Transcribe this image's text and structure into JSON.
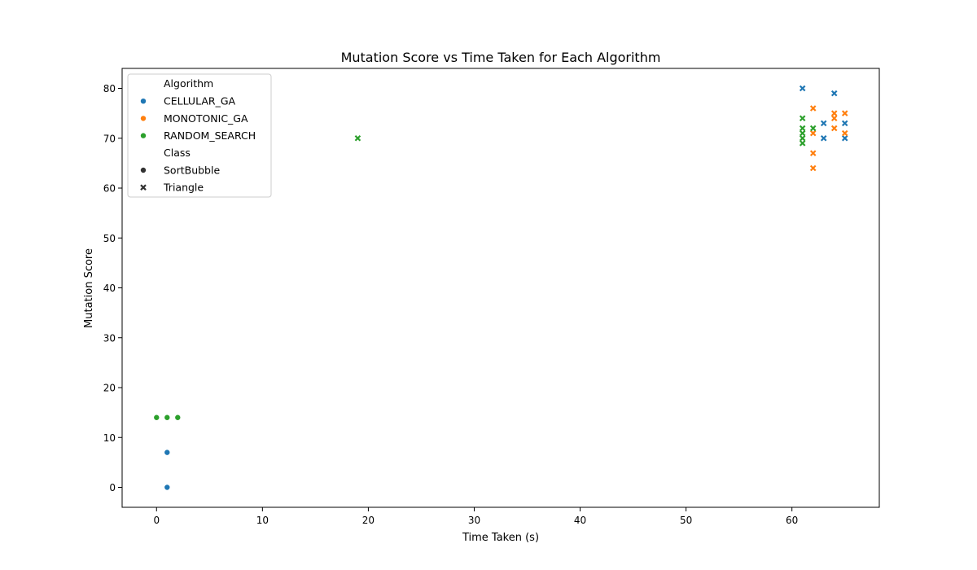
{
  "chart_data": {
    "type": "scatter",
    "title": "Mutation Score vs Time Taken for Each Algorithm",
    "xlabel": "Time Taken (s)",
    "ylabel": "Mutation Score",
    "xlim": [
      -3.25,
      68.25
    ],
    "ylim": [
      -4,
      84
    ],
    "xticks": [
      0,
      10,
      20,
      30,
      40,
      50,
      60
    ],
    "yticks": [
      0,
      10,
      20,
      30,
      40,
      50,
      60,
      70,
      80
    ],
    "grid": false,
    "legend": {
      "placement": "upper-left",
      "hue_title": "Algorithm",
      "style_title": "Class",
      "hue_entries": [
        {
          "label": "CELLULAR_GA",
          "color": "#1f77b4"
        },
        {
          "label": "MONOTONIC_GA",
          "color": "#ff7f0e"
        },
        {
          "label": "RANDOM_SEARCH",
          "color": "#2ca02c"
        }
      ],
      "style_entries": [
        {
          "label": "SortBubble",
          "marker": "circle"
        },
        {
          "label": "Triangle",
          "marker": "x"
        }
      ]
    },
    "series": [
      {
        "name": "CELLULAR_GA",
        "class": "SortBubble",
        "marker": "circle",
        "color": "#1f77b4",
        "points": [
          [
            1,
            7
          ],
          [
            1,
            0
          ]
        ]
      },
      {
        "name": "RANDOM_SEARCH",
        "class": "SortBubble",
        "marker": "circle",
        "color": "#2ca02c",
        "points": [
          [
            0,
            14
          ],
          [
            1,
            14
          ],
          [
            2,
            14
          ]
        ]
      },
      {
        "name": "CELLULAR_GA",
        "class": "Triangle",
        "marker": "x",
        "color": "#1f77b4",
        "points": [
          [
            61,
            80
          ],
          [
            64,
            79
          ],
          [
            63,
            73
          ],
          [
            65,
            73
          ],
          [
            63,
            70
          ],
          [
            65,
            70
          ]
        ]
      },
      {
        "name": "MONOTONIC_GA",
        "class": "Triangle",
        "marker": "x",
        "color": "#ff7f0e",
        "points": [
          [
            62,
            76
          ],
          [
            64,
            75
          ],
          [
            65,
            75
          ],
          [
            64,
            74
          ],
          [
            64,
            72
          ],
          [
            62,
            71
          ],
          [
            65,
            71
          ],
          [
            62,
            67
          ],
          [
            62,
            64
          ]
        ]
      },
      {
        "name": "RANDOM_SEARCH",
        "class": "Triangle",
        "marker": "x",
        "color": "#2ca02c",
        "points": [
          [
            19,
            70
          ],
          [
            61,
            74
          ],
          [
            61,
            72
          ],
          [
            62,
            72
          ],
          [
            61,
            71
          ],
          [
            61,
            70
          ],
          [
            61,
            69
          ]
        ]
      }
    ]
  }
}
